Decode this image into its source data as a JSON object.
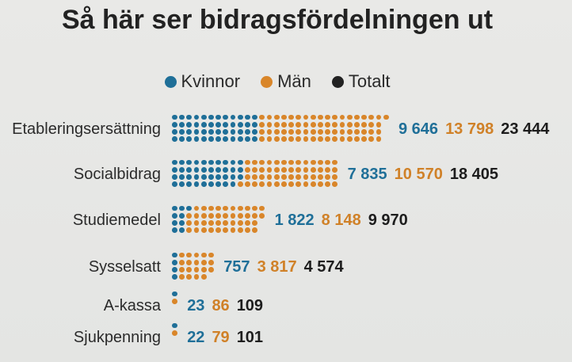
{
  "title": "Så här ser bidragsfördelningen ut",
  "chart_data": {
    "type": "dot",
    "title": "Så här ser bidragsfördelningen ut",
    "legend": [
      {
        "name": "Kvinnor",
        "color": "#1f6f98"
      },
      {
        "name": "Män",
        "color": "#d9862a"
      },
      {
        "name": "Totalt",
        "color": "#222222"
      }
    ],
    "legend_position": "top",
    "rows": [
      {
        "label": "Etableringsersättning",
        "kvinnor": 9646,
        "man": 13798,
        "totalt": 23444,
        "kvinnor_text": "9 646",
        "man_text": "13 798",
        "totalt_text": "23 444"
      },
      {
        "label": "Socialbidrag",
        "kvinnor": 7835,
        "man": 10570,
        "totalt": 18405,
        "kvinnor_text": "7 835",
        "man_text": "10 570",
        "totalt_text": "18 405"
      },
      {
        "label": "Studiemedel",
        "kvinnor": 1822,
        "man": 8148,
        "totalt": 9970,
        "kvinnor_text": "1 822",
        "man_text": "8 148",
        "totalt_text": "9 970"
      },
      {
        "label": "Sysselsatt",
        "kvinnor": 757,
        "man": 3817,
        "totalt": 4574,
        "kvinnor_text": "757",
        "man_text": "3 817",
        "totalt_text": "4 574"
      },
      {
        "label": "A-kassa",
        "kvinnor": 23,
        "man": 86,
        "totalt": 109,
        "kvinnor_text": "23",
        "man_text": "86",
        "totalt_text": "109"
      },
      {
        "label": "Sjukpenning",
        "kvinnor": 22,
        "man": 79,
        "totalt": 101,
        "kvinnor_text": "22",
        "man_text": "79",
        "totalt_text": "101"
      }
    ]
  }
}
